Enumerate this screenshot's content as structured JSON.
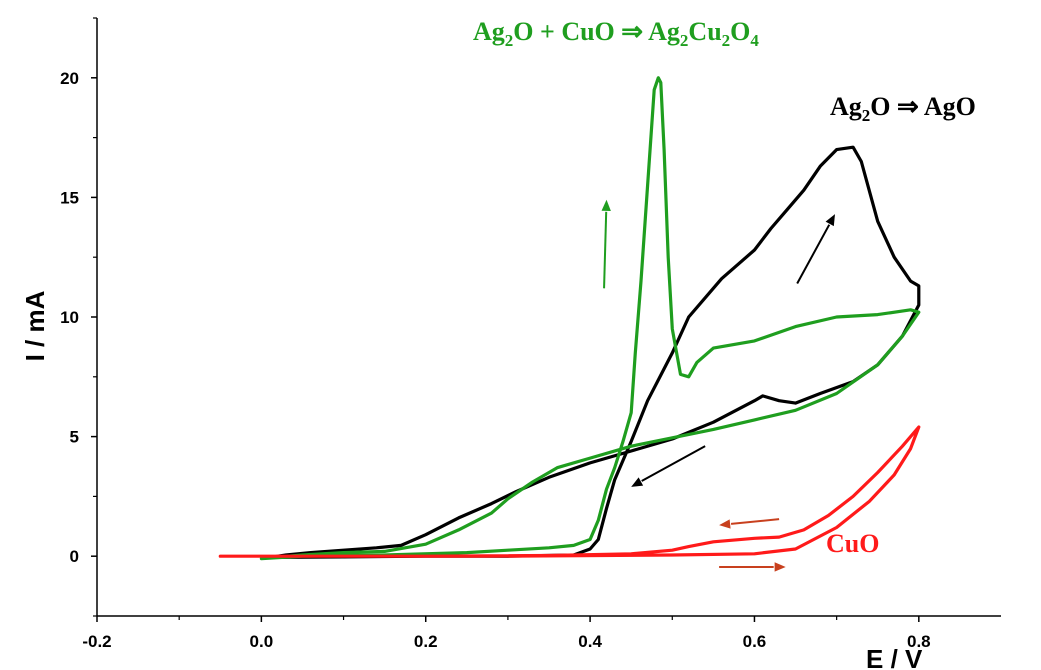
{
  "chart_data": {
    "type": "line",
    "xlabel": "E / V",
    "ylabel": "I / mA",
    "xlim": [
      -0.2,
      0.9
    ],
    "ylim": [
      -2.5,
      22.5
    ],
    "x_ticks": [
      "-0.2",
      "0.0",
      "0.2",
      "0.4",
      "0.6",
      "0.8"
    ],
    "y_ticks": [
      "0",
      "5",
      "10",
      "15",
      "20"
    ],
    "grid": false,
    "colors": {
      "black": "#000000",
      "green": "#1f9e1f",
      "red": "#ff1a1a",
      "arrow_red": "#c8401e"
    },
    "annotations": [
      {
        "name": "green-annotation",
        "parts": [
          {
            "t": "Ag"
          },
          {
            "t": "2",
            "sub": true
          },
          {
            "t": "O + CuO ⇒ Ag"
          },
          {
            "t": "2",
            "sub": true
          },
          {
            "t": "Cu"
          },
          {
            "t": "2",
            "sub": true
          },
          {
            "t": "O"
          },
          {
            "t": "4",
            "sub": true
          }
        ],
        "color": "#1f9e1f"
      },
      {
        "name": "black-annotation",
        "parts": [
          {
            "t": "Ag"
          },
          {
            "t": "2",
            "sub": true
          },
          {
            "t": "O ⇒ AgO"
          }
        ],
        "color": "#000000"
      },
      {
        "name": "red-annotation",
        "parts": [
          {
            "t": "CuO"
          }
        ],
        "color": "#ff1a1a"
      }
    ],
    "series": [
      {
        "color": "#000000",
        "points": [
          [
            0.01,
            -0.05
          ],
          [
            0.03,
            0.05
          ],
          [
            0.06,
            0.15
          ],
          [
            0.1,
            0.25
          ],
          [
            0.14,
            0.35
          ],
          [
            0.17,
            0.45
          ],
          [
            0.2,
            0.9
          ],
          [
            0.24,
            1.6
          ],
          [
            0.28,
            2.2
          ],
          [
            0.31,
            2.7
          ],
          [
            0.35,
            3.3
          ],
          [
            0.4,
            3.9
          ],
          [
            0.45,
            4.4
          ],
          [
            0.5,
            4.9
          ],
          [
            0.55,
            5.6
          ],
          [
            0.6,
            6.5
          ],
          [
            0.61,
            6.7
          ],
          [
            0.63,
            6.5
          ],
          [
            0.65,
            6.4
          ],
          [
            0.68,
            6.8
          ],
          [
            0.72,
            7.3
          ],
          [
            0.75,
            8.0
          ],
          [
            0.78,
            9.2
          ],
          [
            0.8,
            10.5
          ],
          [
            0.8,
            11.3
          ],
          [
            0.79,
            11.5
          ],
          [
            0.77,
            12.5
          ],
          [
            0.75,
            14.0
          ],
          [
            0.73,
            16.5
          ],
          [
            0.72,
            17.1
          ],
          [
            0.7,
            17.0
          ],
          [
            0.68,
            16.3
          ],
          [
            0.66,
            15.3
          ],
          [
            0.64,
            14.5
          ],
          [
            0.62,
            13.7
          ],
          [
            0.6,
            12.8
          ],
          [
            0.56,
            11.6
          ],
          [
            0.52,
            10.0
          ],
          [
            0.5,
            8.5
          ],
          [
            0.47,
            6.5
          ],
          [
            0.45,
            4.8
          ],
          [
            0.43,
            3.2
          ],
          [
            0.42,
            2.0
          ],
          [
            0.41,
            0.7
          ],
          [
            0.4,
            0.3
          ],
          [
            0.38,
            0.05
          ],
          [
            0.3,
            0.0
          ],
          [
            0.2,
            0.0
          ],
          [
            0.1,
            -0.03
          ],
          [
            0.01,
            -0.05
          ]
        ]
      },
      {
        "color": "#1f9e1f",
        "points": [
          [
            0.0,
            -0.1
          ],
          [
            0.05,
            0.05
          ],
          [
            0.1,
            0.15
          ],
          [
            0.15,
            0.2
          ],
          [
            0.2,
            0.5
          ],
          [
            0.24,
            1.1
          ],
          [
            0.28,
            1.8
          ],
          [
            0.3,
            2.4
          ],
          [
            0.33,
            3.1
          ],
          [
            0.36,
            3.7
          ],
          [
            0.4,
            4.1
          ],
          [
            0.45,
            4.6
          ],
          [
            0.5,
            4.95
          ],
          [
            0.55,
            5.3
          ],
          [
            0.6,
            5.7
          ],
          [
            0.65,
            6.1
          ],
          [
            0.7,
            6.8
          ],
          [
            0.75,
            8.0
          ],
          [
            0.78,
            9.2
          ],
          [
            0.8,
            10.2
          ],
          [
            0.79,
            10.3
          ],
          [
            0.75,
            10.1
          ],
          [
            0.7,
            10.0
          ],
          [
            0.65,
            9.6
          ],
          [
            0.6,
            9.0
          ],
          [
            0.55,
            8.7
          ],
          [
            0.53,
            8.1
          ],
          [
            0.52,
            7.5
          ],
          [
            0.51,
            7.6
          ],
          [
            0.5,
            9.5
          ],
          [
            0.495,
            12.5
          ],
          [
            0.49,
            17.0
          ],
          [
            0.486,
            19.8
          ],
          [
            0.483,
            20.0
          ],
          [
            0.478,
            19.5
          ],
          [
            0.47,
            15.5
          ],
          [
            0.462,
            11.5
          ],
          [
            0.455,
            8.5
          ],
          [
            0.45,
            6.0
          ],
          [
            0.44,
            4.8
          ],
          [
            0.43,
            3.7
          ],
          [
            0.42,
            2.8
          ],
          [
            0.41,
            1.5
          ],
          [
            0.4,
            0.7
          ],
          [
            0.38,
            0.45
          ],
          [
            0.35,
            0.35
          ],
          [
            0.3,
            0.25
          ],
          [
            0.25,
            0.15
          ],
          [
            0.15,
            0.05
          ],
          [
            0.05,
            0.0
          ],
          [
            0.0,
            -0.1
          ]
        ]
      },
      {
        "color": "#ff1a1a",
        "points": [
          [
            -0.05,
            0.0
          ],
          [
            0.1,
            0.0
          ],
          [
            0.3,
            0.0
          ],
          [
            0.5,
            0.05
          ],
          [
            0.6,
            0.1
          ],
          [
            0.65,
            0.3
          ],
          [
            0.7,
            1.2
          ],
          [
            0.74,
            2.3
          ],
          [
            0.77,
            3.4
          ],
          [
            0.79,
            4.5
          ],
          [
            0.8,
            5.4
          ],
          [
            0.78,
            4.6
          ],
          [
            0.75,
            3.5
          ],
          [
            0.72,
            2.5
          ],
          [
            0.69,
            1.7
          ],
          [
            0.66,
            1.1
          ],
          [
            0.63,
            0.8
          ],
          [
            0.6,
            0.75
          ],
          [
            0.55,
            0.6
          ],
          [
            0.52,
            0.4
          ],
          [
            0.5,
            0.25
          ],
          [
            0.45,
            0.1
          ],
          [
            0.35,
            0.03
          ],
          [
            0.2,
            0.0
          ],
          [
            -0.05,
            0.0
          ]
        ]
      }
    ],
    "arrows": [
      {
        "color": "#000000",
        "from": [
          0.54,
          4.6
        ],
        "to": [
          0.45,
          2.9
        ]
      },
      {
        "color": "#000000",
        "from": [
          0.652,
          11.4
        ],
        "to": [
          0.698,
          14.3
        ]
      },
      {
        "color": "#1f9e1f",
        "from": [
          0.417,
          11.2
        ],
        "to": [
          0.42,
          14.9
        ]
      },
      {
        "color": "#c8401e",
        "from": [
          0.63,
          1.55
        ],
        "to": [
          0.557,
          1.3
        ]
      },
      {
        "color": "#c8401e",
        "from": [
          0.557,
          -0.45
        ],
        "to": [
          0.638,
          -0.45
        ]
      }
    ]
  }
}
